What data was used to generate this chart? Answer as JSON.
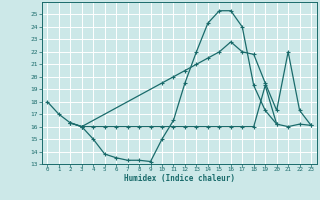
{
  "xlabel": "Humidex (Indice chaleur)",
  "xlim": [
    -0.5,
    23.5
  ],
  "ylim": [
    13,
    26
  ],
  "yticks": [
    13,
    14,
    15,
    16,
    17,
    18,
    19,
    20,
    21,
    22,
    23,
    24,
    25
  ],
  "xticks": [
    0,
    1,
    2,
    3,
    4,
    5,
    6,
    7,
    8,
    9,
    10,
    11,
    12,
    13,
    14,
    15,
    16,
    17,
    18,
    19,
    20,
    21,
    22,
    23
  ],
  "bg_color": "#cce8e8",
  "grid_color": "#ffffff",
  "line_color": "#1a6b6b",
  "line1_x": [
    0,
    1,
    2,
    3,
    4,
    5,
    6,
    7,
    8,
    9,
    10,
    11,
    12,
    13,
    14,
    15,
    16,
    17,
    18,
    19,
    20
  ],
  "line1_y": [
    18,
    17,
    16.3,
    16,
    15,
    13.8,
    13.5,
    13.3,
    13.3,
    13.2,
    15,
    16.5,
    19.5,
    22,
    24.3,
    25.3,
    25.3,
    24,
    19.3,
    17.3,
    16.2
  ],
  "line2_x": [
    2,
    3,
    4,
    5,
    6,
    7,
    8,
    9,
    10,
    11,
    12,
    13,
    14,
    15,
    16,
    17,
    18,
    19,
    20,
    21,
    22,
    23
  ],
  "line2_y": [
    16.3,
    16,
    16,
    16,
    16,
    16,
    16,
    16,
    16,
    16,
    16,
    16,
    16,
    16,
    16,
    16,
    16,
    19.3,
    16.2,
    16,
    16.2,
    16.1
  ],
  "line3_x": [
    2,
    3,
    10,
    11,
    12,
    13,
    14,
    15,
    16,
    17,
    18,
    19,
    20,
    21,
    22,
    23
  ],
  "line3_y": [
    16.3,
    16,
    19.5,
    20,
    20.5,
    21,
    21.5,
    22,
    22.8,
    22,
    21.8,
    19.5,
    17.3,
    22,
    17.3,
    16.1
  ]
}
